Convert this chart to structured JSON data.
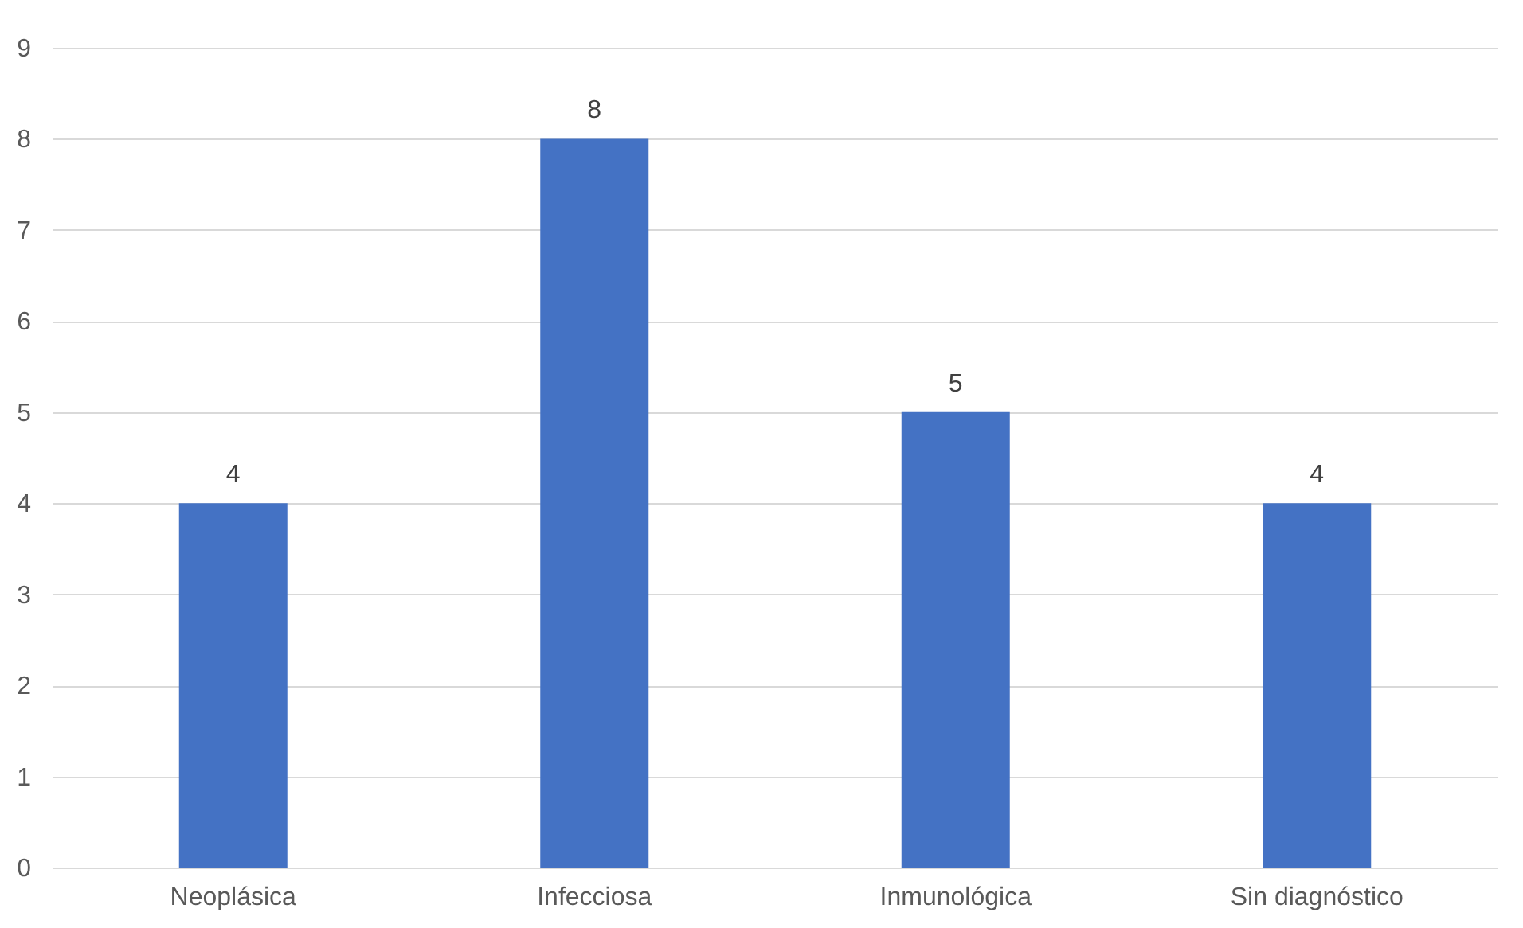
{
  "chart_data": {
    "type": "bar",
    "categories": [
      "Neoplásica",
      "Infecciosa",
      "Inmunológica",
      "Sin diagnóstico"
    ],
    "values": [
      4,
      8,
      5,
      4
    ],
    "color": "#4472c4",
    "ylim": [
      0,
      9
    ],
    "yticks": [
      0,
      1,
      2,
      3,
      4,
      5,
      6,
      7,
      8,
      9
    ],
    "grid": "y",
    "data_labels": true
  }
}
